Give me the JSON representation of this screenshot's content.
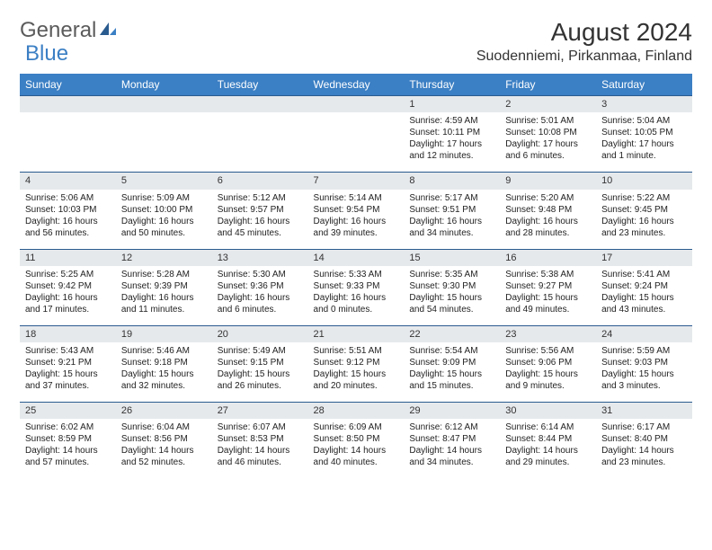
{
  "logo": {
    "part1": "General",
    "part2": "Blue"
  },
  "title": "August 2024",
  "location": "Suodenniemi, Pirkanmaa, Finland",
  "colors": {
    "header_bg": "#3b7fc4",
    "header_text": "#ffffff",
    "daynum_bg": "#e6e9ec",
    "row_border": "#2a5b8f",
    "text": "#222222",
    "logo_gray": "#5b5b5b",
    "logo_blue": "#3b7fc4"
  },
  "typography": {
    "title_fontsize": 28,
    "location_fontsize": 16,
    "dayhead_fontsize": 12,
    "daynum_fontsize": 11,
    "body_fontsize": 10
  },
  "dayheads": [
    "Sunday",
    "Monday",
    "Tuesday",
    "Wednesday",
    "Thursday",
    "Friday",
    "Saturday"
  ],
  "weeks": [
    [
      {
        "n": "",
        "sr": "",
        "ss": "",
        "dl1": "",
        "dl2": ""
      },
      {
        "n": "",
        "sr": "",
        "ss": "",
        "dl1": "",
        "dl2": ""
      },
      {
        "n": "",
        "sr": "",
        "ss": "",
        "dl1": "",
        "dl2": ""
      },
      {
        "n": "",
        "sr": "",
        "ss": "",
        "dl1": "",
        "dl2": ""
      },
      {
        "n": "1",
        "sr": "Sunrise: 4:59 AM",
        "ss": "Sunset: 10:11 PM",
        "dl1": "Daylight: 17 hours",
        "dl2": "and 12 minutes."
      },
      {
        "n": "2",
        "sr": "Sunrise: 5:01 AM",
        "ss": "Sunset: 10:08 PM",
        "dl1": "Daylight: 17 hours",
        "dl2": "and 6 minutes."
      },
      {
        "n": "3",
        "sr": "Sunrise: 5:04 AM",
        "ss": "Sunset: 10:05 PM",
        "dl1": "Daylight: 17 hours",
        "dl2": "and 1 minute."
      }
    ],
    [
      {
        "n": "4",
        "sr": "Sunrise: 5:06 AM",
        "ss": "Sunset: 10:03 PM",
        "dl1": "Daylight: 16 hours",
        "dl2": "and 56 minutes."
      },
      {
        "n": "5",
        "sr": "Sunrise: 5:09 AM",
        "ss": "Sunset: 10:00 PM",
        "dl1": "Daylight: 16 hours",
        "dl2": "and 50 minutes."
      },
      {
        "n": "6",
        "sr": "Sunrise: 5:12 AM",
        "ss": "Sunset: 9:57 PM",
        "dl1": "Daylight: 16 hours",
        "dl2": "and 45 minutes."
      },
      {
        "n": "7",
        "sr": "Sunrise: 5:14 AM",
        "ss": "Sunset: 9:54 PM",
        "dl1": "Daylight: 16 hours",
        "dl2": "and 39 minutes."
      },
      {
        "n": "8",
        "sr": "Sunrise: 5:17 AM",
        "ss": "Sunset: 9:51 PM",
        "dl1": "Daylight: 16 hours",
        "dl2": "and 34 minutes."
      },
      {
        "n": "9",
        "sr": "Sunrise: 5:20 AM",
        "ss": "Sunset: 9:48 PM",
        "dl1": "Daylight: 16 hours",
        "dl2": "and 28 minutes."
      },
      {
        "n": "10",
        "sr": "Sunrise: 5:22 AM",
        "ss": "Sunset: 9:45 PM",
        "dl1": "Daylight: 16 hours",
        "dl2": "and 23 minutes."
      }
    ],
    [
      {
        "n": "11",
        "sr": "Sunrise: 5:25 AM",
        "ss": "Sunset: 9:42 PM",
        "dl1": "Daylight: 16 hours",
        "dl2": "and 17 minutes."
      },
      {
        "n": "12",
        "sr": "Sunrise: 5:28 AM",
        "ss": "Sunset: 9:39 PM",
        "dl1": "Daylight: 16 hours",
        "dl2": "and 11 minutes."
      },
      {
        "n": "13",
        "sr": "Sunrise: 5:30 AM",
        "ss": "Sunset: 9:36 PM",
        "dl1": "Daylight: 16 hours",
        "dl2": "and 6 minutes."
      },
      {
        "n": "14",
        "sr": "Sunrise: 5:33 AM",
        "ss": "Sunset: 9:33 PM",
        "dl1": "Daylight: 16 hours",
        "dl2": "and 0 minutes."
      },
      {
        "n": "15",
        "sr": "Sunrise: 5:35 AM",
        "ss": "Sunset: 9:30 PM",
        "dl1": "Daylight: 15 hours",
        "dl2": "and 54 minutes."
      },
      {
        "n": "16",
        "sr": "Sunrise: 5:38 AM",
        "ss": "Sunset: 9:27 PM",
        "dl1": "Daylight: 15 hours",
        "dl2": "and 49 minutes."
      },
      {
        "n": "17",
        "sr": "Sunrise: 5:41 AM",
        "ss": "Sunset: 9:24 PM",
        "dl1": "Daylight: 15 hours",
        "dl2": "and 43 minutes."
      }
    ],
    [
      {
        "n": "18",
        "sr": "Sunrise: 5:43 AM",
        "ss": "Sunset: 9:21 PM",
        "dl1": "Daylight: 15 hours",
        "dl2": "and 37 minutes."
      },
      {
        "n": "19",
        "sr": "Sunrise: 5:46 AM",
        "ss": "Sunset: 9:18 PM",
        "dl1": "Daylight: 15 hours",
        "dl2": "and 32 minutes."
      },
      {
        "n": "20",
        "sr": "Sunrise: 5:49 AM",
        "ss": "Sunset: 9:15 PM",
        "dl1": "Daylight: 15 hours",
        "dl2": "and 26 minutes."
      },
      {
        "n": "21",
        "sr": "Sunrise: 5:51 AM",
        "ss": "Sunset: 9:12 PM",
        "dl1": "Daylight: 15 hours",
        "dl2": "and 20 minutes."
      },
      {
        "n": "22",
        "sr": "Sunrise: 5:54 AM",
        "ss": "Sunset: 9:09 PM",
        "dl1": "Daylight: 15 hours",
        "dl2": "and 15 minutes."
      },
      {
        "n": "23",
        "sr": "Sunrise: 5:56 AM",
        "ss": "Sunset: 9:06 PM",
        "dl1": "Daylight: 15 hours",
        "dl2": "and 9 minutes."
      },
      {
        "n": "24",
        "sr": "Sunrise: 5:59 AM",
        "ss": "Sunset: 9:03 PM",
        "dl1": "Daylight: 15 hours",
        "dl2": "and 3 minutes."
      }
    ],
    [
      {
        "n": "25",
        "sr": "Sunrise: 6:02 AM",
        "ss": "Sunset: 8:59 PM",
        "dl1": "Daylight: 14 hours",
        "dl2": "and 57 minutes."
      },
      {
        "n": "26",
        "sr": "Sunrise: 6:04 AM",
        "ss": "Sunset: 8:56 PM",
        "dl1": "Daylight: 14 hours",
        "dl2": "and 52 minutes."
      },
      {
        "n": "27",
        "sr": "Sunrise: 6:07 AM",
        "ss": "Sunset: 8:53 PM",
        "dl1": "Daylight: 14 hours",
        "dl2": "and 46 minutes."
      },
      {
        "n": "28",
        "sr": "Sunrise: 6:09 AM",
        "ss": "Sunset: 8:50 PM",
        "dl1": "Daylight: 14 hours",
        "dl2": "and 40 minutes."
      },
      {
        "n": "29",
        "sr": "Sunrise: 6:12 AM",
        "ss": "Sunset: 8:47 PM",
        "dl1": "Daylight: 14 hours",
        "dl2": "and 34 minutes."
      },
      {
        "n": "30",
        "sr": "Sunrise: 6:14 AM",
        "ss": "Sunset: 8:44 PM",
        "dl1": "Daylight: 14 hours",
        "dl2": "and 29 minutes."
      },
      {
        "n": "31",
        "sr": "Sunrise: 6:17 AM",
        "ss": "Sunset: 8:40 PM",
        "dl1": "Daylight: 14 hours",
        "dl2": "and 23 minutes."
      }
    ]
  ]
}
